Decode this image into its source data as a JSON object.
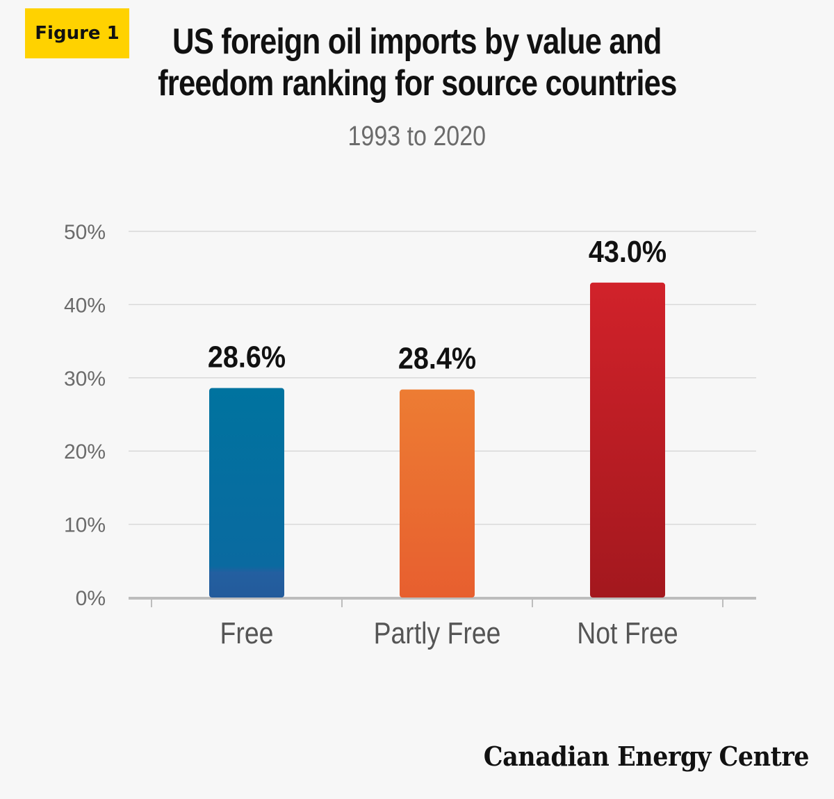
{
  "badge": {
    "label": "Figure 1"
  },
  "header": {
    "title_line1": "US foreign oil imports by value and",
    "title_line2": "freedom ranking for source countries",
    "subtitle": "1993 to 2020"
  },
  "colors": {
    "free": "#1f6fa0",
    "partly_free": "#ea7433",
    "not_free": "#c01f26",
    "grid": "#d9d9d9",
    "axis": "#bdbdbd",
    "badge": "#ffd200"
  },
  "chart_data": {
    "type": "bar",
    "categories": [
      "Free",
      "Partly Free",
      "Not Free"
    ],
    "values": [
      28.6,
      28.4,
      43.0
    ],
    "value_labels": [
      "28.6%",
      "28.4%",
      "43.0%"
    ],
    "ylim": [
      0,
      50
    ],
    "yticks": [
      "0%",
      "10%",
      "20%",
      "30%",
      "40%",
      "50%"
    ],
    "grid": true
  },
  "footer": {
    "logo": "Canadian Energy Centre"
  }
}
